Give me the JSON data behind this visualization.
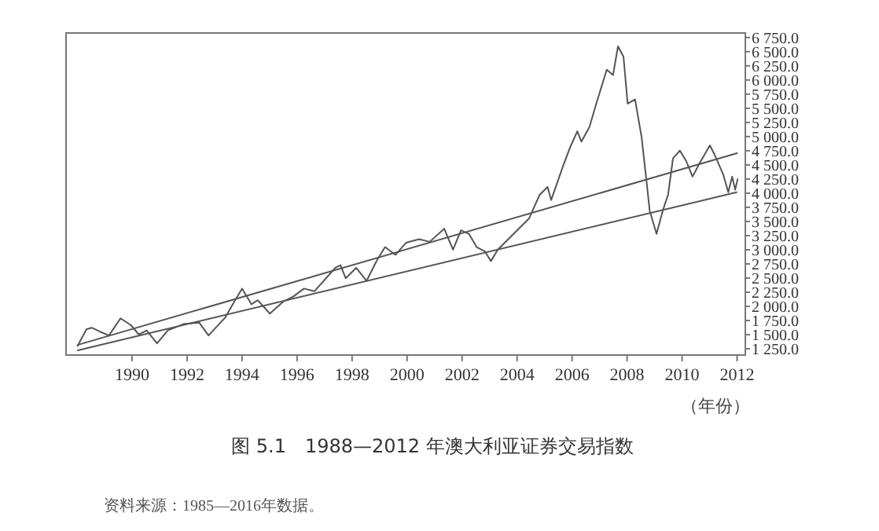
{
  "chart_data": {
    "type": "line",
    "title": "图 5.1　1988—2012 年澳大利亚证券交易指数",
    "xlabel": "（年份）",
    "annotations": [
      "资料来源：1985—2016年数据。"
    ],
    "xlim": [
      1987.6,
      2012.3
    ],
    "ylim": [
      1140,
      6830
    ],
    "xticks": [
      1990,
      1992,
      1994,
      1996,
      1998,
      2000,
      2002,
      2004,
      2006,
      2008,
      2010,
      2012
    ],
    "yticks": [
      {
        "value": 1250,
        "label": "1 250.0"
      },
      {
        "value": 1500,
        "label": "1 500.0"
      },
      {
        "value": 1750,
        "label": "1 750.0"
      },
      {
        "value": 2000,
        "label": "2 000.0"
      },
      {
        "value": 2250,
        "label": "2 250.0"
      },
      {
        "value": 2500,
        "label": "2 500.0"
      },
      {
        "value": 2750,
        "label": "2 750.0"
      },
      {
        "value": 3000,
        "label": "3 000.0"
      },
      {
        "value": 3250,
        "label": "3 250.0"
      },
      {
        "value": 3500,
        "label": "3 500.0"
      },
      {
        "value": 3750,
        "label": "3 750.0"
      },
      {
        "value": 4000,
        "label": "4 000.0"
      },
      {
        "value": 4250,
        "label": "4 250.0"
      },
      {
        "value": 4500,
        "label": "4 500.0"
      },
      {
        "value": 4750,
        "label": "4 750.0"
      },
      {
        "value": 5000,
        "label": "5 000.0"
      },
      {
        "value": 5250,
        "label": "5 250.0"
      },
      {
        "value": 5500,
        "label": "5 500.0"
      },
      {
        "value": 5750,
        "label": "5 750.0"
      },
      {
        "value": 6000,
        "label": "6 000.0"
      },
      {
        "value": 6250,
        "label": "6 250.0"
      },
      {
        "value": 6500,
        "label": "6 500.0"
      },
      {
        "value": 6750,
        "label": "6 750.0"
      }
    ],
    "series": [
      {
        "color": "#555555",
        "x": [
          1988.02,
          1988.34,
          1988.53,
          1988.82,
          1989.16,
          1989.58,
          1989.96,
          1990.25,
          1990.53,
          1990.91,
          1991.3,
          1991.87,
          1992.44,
          1992.78,
          1993.39,
          1993.68,
          1994.0,
          1994.34,
          1994.57,
          1995.01,
          1995.49,
          1995.87,
          1996.25,
          1996.63,
          1997.39,
          1997.58,
          1997.77,
          1998.15,
          1998.53,
          1998.91,
          1999.2,
          1999.58,
          1999.96,
          2000.44,
          2000.82,
          2001.35,
          2001.67,
          2001.96,
          2002.25,
          2002.53,
          2002.82,
          2003.05,
          2003.3,
          2003.68,
          2004.06,
          2004.44,
          2004.82,
          2005.11,
          2005.24,
          2005.67,
          2005.92,
          2006.19,
          2006.34,
          2006.63,
          2006.91,
          2007.26,
          2007.49,
          2007.67,
          2007.87,
          2008.02,
          2008.29,
          2008.53,
          2008.72,
          2008.82,
          2009.07,
          2009.3,
          2009.49,
          2009.67,
          2009.92,
          2010.15,
          2010.38,
          2010.63,
          2011.01,
          2011.2,
          2011.49,
          2011.68,
          2011.82,
          2011.93,
          2012.02
        ],
        "values": [
          1300,
          1595,
          1623,
          1557,
          1485,
          1789,
          1667,
          1501,
          1576,
          1346,
          1576,
          1687,
          1714,
          1485,
          1805,
          2054,
          2314,
          2037,
          2109,
          1872,
          2081,
          2175,
          2314,
          2267,
          2681,
          2727,
          2496,
          2681,
          2451,
          2819,
          3048,
          2910,
          3124,
          3186,
          3140,
          3372,
          3003,
          3344,
          3280,
          3048,
          2975,
          2800,
          3003,
          3186,
          3372,
          3556,
          3971,
          4109,
          3879,
          4476,
          4800,
          5093,
          4910,
          5167,
          5629,
          6181,
          6087,
          6595,
          6410,
          5582,
          5656,
          4982,
          4153,
          3694,
          3280,
          3694,
          3971,
          4615,
          4753,
          4568,
          4292,
          4523,
          4845,
          4661,
          4338,
          4015,
          4292,
          4062,
          4247
        ]
      },
      {
        "color": "#555555",
        "x": [
          1988.02,
          2012.0
        ],
        "values": [
          1319,
          4706
        ]
      },
      {
        "color": "#555555",
        "x": [
          1988.03,
          2011.98
        ],
        "values": [
          1224,
          4015
        ]
      }
    ]
  }
}
